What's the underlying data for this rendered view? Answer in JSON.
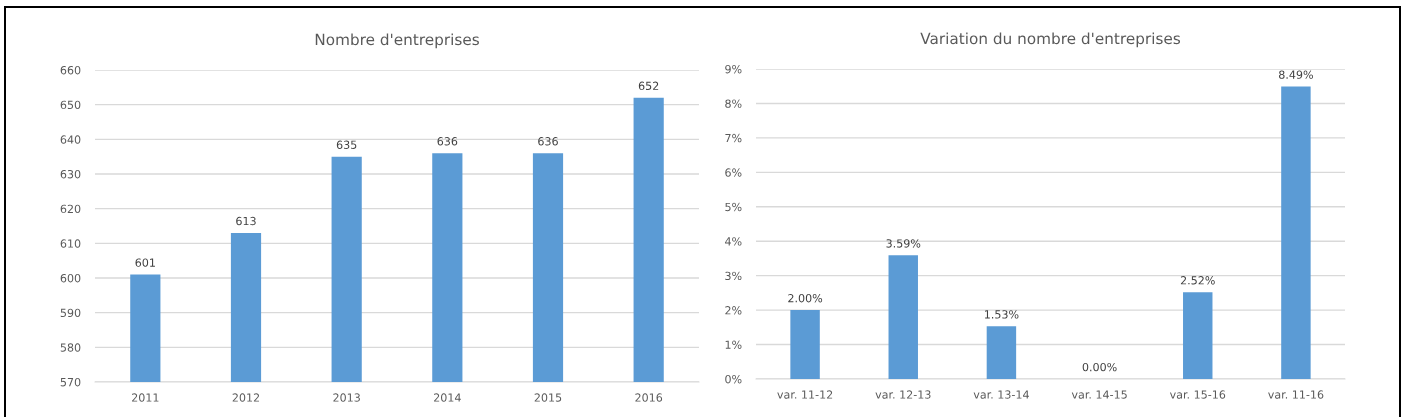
{
  "chart_data": [
    {
      "type": "bar",
      "title": "Nombre d'entreprises",
      "categories": [
        "2011",
        "2012",
        "2013",
        "2014",
        "2015",
        "2016"
      ],
      "values": [
        601,
        613,
        635,
        636,
        636,
        652
      ],
      "color": "#5b9bd5",
      "ylim": [
        570,
        660
      ],
      "yticks": [
        570,
        580,
        590,
        600,
        610,
        620,
        630,
        640,
        650,
        660
      ],
      "grid": "y",
      "data_labels": true
    },
    {
      "type": "bar",
      "title": "Variation du nombre d'entreprises",
      "categories": [
        "var. 11-12",
        "var. 12-13",
        "var. 13-14",
        "var. 14-15",
        "var. 15-16",
        "var. 11-16"
      ],
      "values": [
        2.0,
        3.59,
        1.53,
        0.0,
        2.52,
        8.49
      ],
      "value_labels": [
        "2.00%",
        "3.59%",
        "1.53%",
        "0.00%",
        "2.52%",
        "8.49%"
      ],
      "color": "#5b9bd5",
      "ylim": [
        0,
        9
      ],
      "yticks": [
        {
          "value": 0,
          "label": "0%"
        },
        {
          "value": 1,
          "label": "1%"
        },
        {
          "value": 2,
          "label": "2%"
        },
        {
          "value": 3,
          "label": "3%"
        },
        {
          "value": 4,
          "label": "4%"
        },
        {
          "value": 5,
          "label": "5%"
        },
        {
          "value": 6,
          "label": "6%"
        },
        {
          "value": 7,
          "label": "7%"
        },
        {
          "value": 8,
          "label": "8%"
        },
        {
          "value": 9,
          "label": "9%"
        }
      ],
      "grid": "y"
    }
  ]
}
